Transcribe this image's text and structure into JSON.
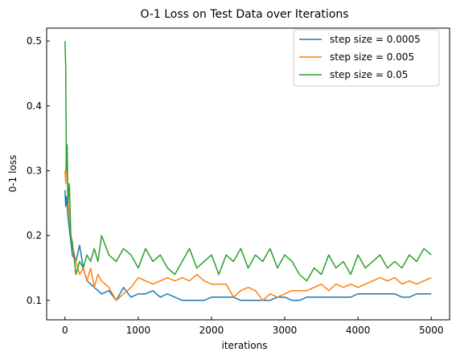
{
  "chart_data": {
    "type": "line",
    "title": "O-1 Loss on Test Data over Iterations",
    "xlabel": "iterations",
    "ylabel": "0-1 loss",
    "xlim": [
      -250,
      5250
    ],
    "ylim": [
      0.07,
      0.52
    ],
    "xticks": [
      0,
      1000,
      2000,
      3000,
      4000,
      5000
    ],
    "yticks": [
      0.1,
      0.2,
      0.3,
      0.4,
      0.5
    ],
    "ytick_labels": [
      "0.1",
      "0.2",
      "0.3",
      "0.4",
      "0.5"
    ],
    "legend_position": "top-right",
    "series": [
      {
        "name": "step size = 0.0005",
        "color": "#1f77b4",
        "x": [
          0,
          10,
          20,
          40,
          60,
          80,
          100,
          150,
          200,
          250,
          300,
          350,
          400,
          450,
          500,
          600,
          700,
          800,
          900,
          1000,
          1100,
          1200,
          1300,
          1400,
          1500,
          1600,
          1700,
          1800,
          1900,
          2000,
          2100,
          2200,
          2300,
          2400,
          2500,
          2600,
          2700,
          2800,
          2900,
          3000,
          3100,
          3200,
          3300,
          3400,
          3500,
          3600,
          3700,
          3800,
          3900,
          4000,
          4100,
          4200,
          4300,
          4400,
          4500,
          4600,
          4700,
          4800,
          4900,
          5000
        ],
        "y": [
          0.27,
          0.245,
          0.26,
          0.23,
          0.21,
          0.19,
          0.17,
          0.16,
          0.185,
          0.15,
          0.13,
          0.125,
          0.12,
          0.115,
          0.11,
          0.115,
          0.1,
          0.12,
          0.105,
          0.11,
          0.11,
          0.115,
          0.105,
          0.11,
          0.105,
          0.1,
          0.1,
          0.1,
          0.1,
          0.105,
          0.105,
          0.105,
          0.105,
          0.1,
          0.1,
          0.1,
          0.1,
          0.1,
          0.105,
          0.105,
          0.1,
          0.1,
          0.105,
          0.105,
          0.105,
          0.105,
          0.105,
          0.105,
          0.105,
          0.11,
          0.11,
          0.11,
          0.11,
          0.11,
          0.11,
          0.105,
          0.105,
          0.11,
          0.11,
          0.11
        ]
      },
      {
        "name": "step size = 0.005",
        "color": "#ff7f0e",
        "x": [
          0,
          10,
          20,
          40,
          60,
          80,
          100,
          150,
          200,
          250,
          300,
          350,
          400,
          450,
          500,
          600,
          700,
          800,
          900,
          1000,
          1100,
          1200,
          1300,
          1400,
          1500,
          1600,
          1700,
          1800,
          1900,
          2000,
          2100,
          2200,
          2300,
          2400,
          2500,
          2600,
          2700,
          2800,
          2900,
          3000,
          3100,
          3200,
          3300,
          3400,
          3500,
          3600,
          3700,
          3800,
          3900,
          4000,
          4100,
          4200,
          4300,
          4400,
          4500,
          4600,
          4700,
          4800,
          4900,
          5000
        ],
        "y": [
          0.3,
          0.28,
          0.34,
          0.26,
          0.23,
          0.2,
          0.185,
          0.16,
          0.14,
          0.15,
          0.13,
          0.15,
          0.12,
          0.14,
          0.13,
          0.12,
          0.1,
          0.11,
          0.12,
          0.135,
          0.13,
          0.125,
          0.13,
          0.135,
          0.13,
          0.135,
          0.13,
          0.14,
          0.13,
          0.125,
          0.125,
          0.125,
          0.105,
          0.115,
          0.12,
          0.115,
          0.1,
          0.11,
          0.105,
          0.11,
          0.115,
          0.115,
          0.115,
          0.12,
          0.125,
          0.115,
          0.125,
          0.12,
          0.125,
          0.12,
          0.125,
          0.13,
          0.135,
          0.13,
          0.135,
          0.125,
          0.13,
          0.125,
          0.13,
          0.135
        ]
      },
      {
        "name": "step size = 0.05",
        "color": "#2ca02c",
        "x": [
          0,
          10,
          20,
          30,
          40,
          60,
          80,
          100,
          150,
          200,
          250,
          300,
          350,
          400,
          450,
          500,
          600,
          700,
          800,
          900,
          1000,
          1100,
          1200,
          1300,
          1400,
          1500,
          1600,
          1700,
          1800,
          1900,
          2000,
          2100,
          2200,
          2300,
          2400,
          2500,
          2600,
          2700,
          2800,
          2900,
          3000,
          3100,
          3200,
          3300,
          3400,
          3500,
          3600,
          3700,
          3800,
          3900,
          4000,
          4100,
          4200,
          4300,
          4400,
          4500,
          4600,
          4700,
          4800,
          4900,
          5000
        ],
        "y": [
          0.5,
          0.46,
          0.3,
          0.34,
          0.25,
          0.28,
          0.2,
          0.19,
          0.14,
          0.16,
          0.15,
          0.17,
          0.16,
          0.18,
          0.16,
          0.2,
          0.17,
          0.16,
          0.18,
          0.17,
          0.15,
          0.18,
          0.16,
          0.17,
          0.15,
          0.14,
          0.16,
          0.18,
          0.15,
          0.16,
          0.17,
          0.14,
          0.17,
          0.16,
          0.18,
          0.15,
          0.17,
          0.16,
          0.18,
          0.15,
          0.17,
          0.16,
          0.14,
          0.13,
          0.15,
          0.14,
          0.17,
          0.15,
          0.16,
          0.14,
          0.17,
          0.15,
          0.16,
          0.17,
          0.15,
          0.16,
          0.15,
          0.17,
          0.16,
          0.18,
          0.17
        ]
      }
    ]
  }
}
